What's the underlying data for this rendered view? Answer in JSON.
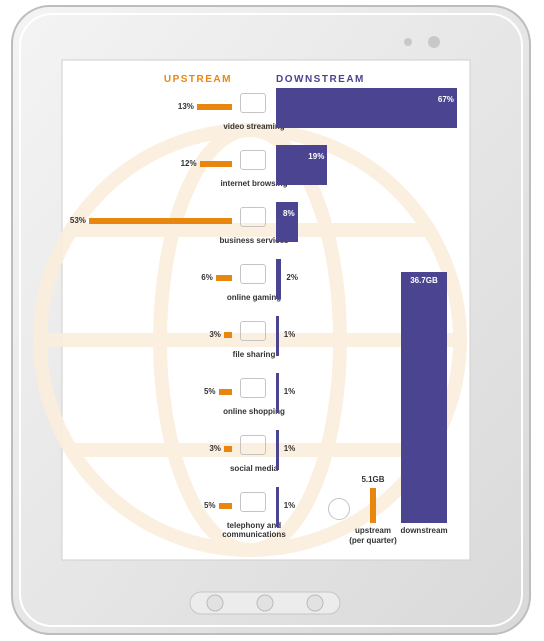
{
  "chart_data": [
    {
      "type": "bar",
      "categories": [
        "video streaming",
        "internet browsing",
        "business services",
        "online gaming",
        "file sharing",
        "online shopping",
        "social media",
        "telephony and communications"
      ],
      "series": [
        {
          "name": "UPSTREAM",
          "color": "#e8860f",
          "values": [
            13,
            12,
            53,
            6,
            3,
            5,
            3,
            5
          ],
          "value_labels": [
            "13%",
            "12%",
            "53%",
            "6%",
            "3%",
            "5%",
            "3%",
            "5%"
          ]
        },
        {
          "name": "DOWNSTREAM",
          "color": "#4b4490",
          "values": [
            67,
            19,
            8,
            2,
            1,
            1,
            1,
            1
          ],
          "value_labels": [
            "67%",
            "19%",
            "8%",
            "2%",
            "1%",
            "1%",
            "1%",
            "1%"
          ]
        }
      ]
    },
    {
      "type": "bar",
      "categories": [
        "upstream",
        "downstream"
      ],
      "values": [
        5.1,
        36.7
      ],
      "value_labels": [
        "5.1GB",
        "36.7GB"
      ],
      "colors": [
        "#e8860f",
        "#4b4490"
      ],
      "note": "(per quarter)"
    }
  ]
}
